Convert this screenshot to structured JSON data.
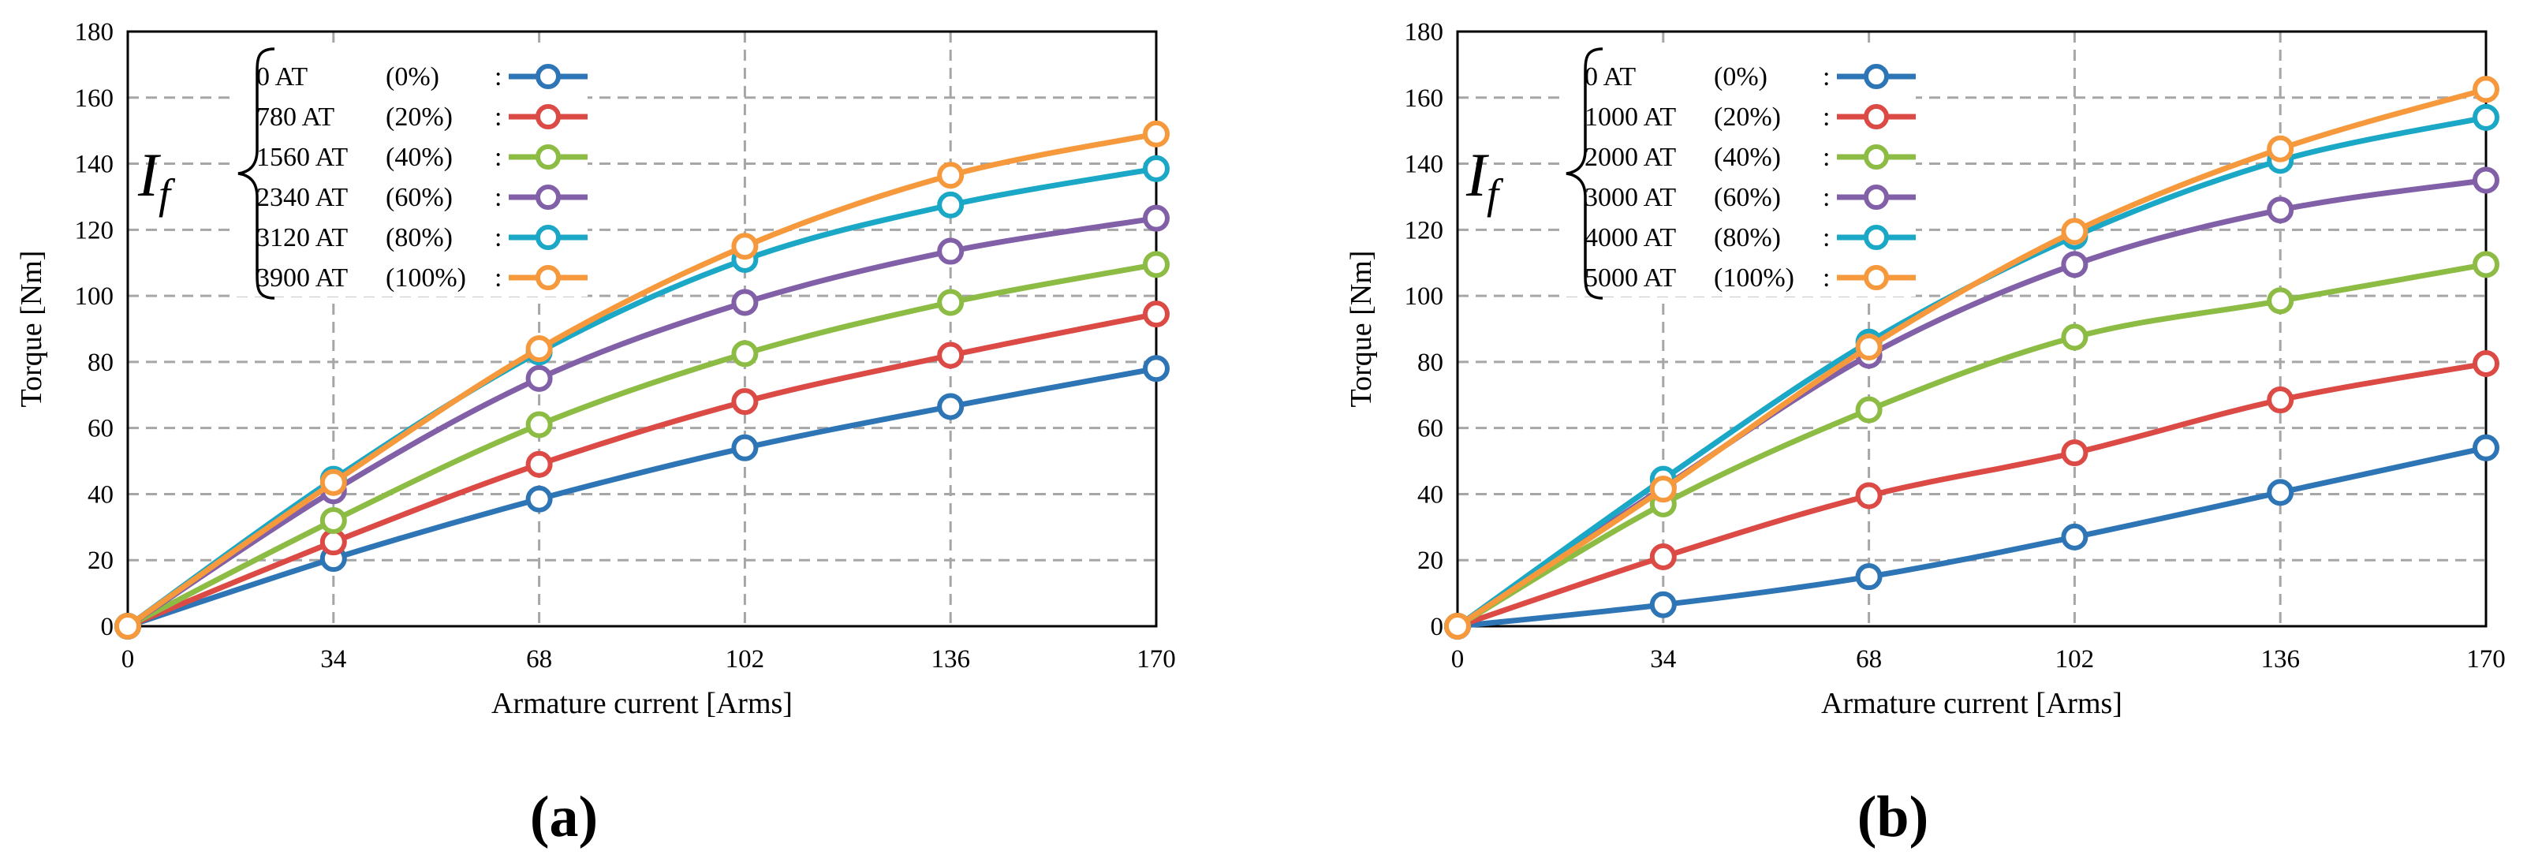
{
  "chart_data": [
    {
      "type": "line",
      "panel_label": "(a)",
      "xlabel": "Armature current [Arms]",
      "ylabel": "Torque [Nm]",
      "xlim": [
        0,
        170
      ],
      "ylim": [
        0,
        180
      ],
      "x_ticks": [
        0,
        34,
        68,
        102,
        136,
        170
      ],
      "y_ticks": [
        0,
        20,
        40,
        60,
        80,
        100,
        120,
        140,
        160,
        180
      ],
      "grid": true,
      "legend_position": "top-left",
      "legend_prefix": "I",
      "legend_prefix_sub": "f",
      "x": [
        0,
        34,
        68,
        102,
        136,
        170
      ],
      "series": [
        {
          "name": "0 AT",
          "pct": "(0%)",
          "color": "#2e75b6",
          "values": [
            0,
            20.5,
            38.5,
            54,
            66.5,
            78
          ]
        },
        {
          "name": "780 AT",
          "pct": "(20%)",
          "color": "#dc4a45",
          "values": [
            0,
            25.5,
            49,
            68,
            82,
            94.5
          ]
        },
        {
          "name": "1560 AT",
          "pct": "(40%)",
          "color": "#8cbc44",
          "values": [
            0,
            32,
            61,
            82.5,
            98,
            109.5
          ]
        },
        {
          "name": "2340 AT",
          "pct": "(60%)",
          "color": "#8160a8",
          "values": [
            0,
            41,
            75,
            98,
            113.5,
            123.5
          ]
        },
        {
          "name": "3120 AT",
          "pct": "(80%)",
          "color": "#1ba8c6",
          "values": [
            0,
            44.5,
            83,
            111,
            127.5,
            138.5
          ]
        },
        {
          "name": "3900 AT",
          "pct": "(100%)",
          "color": "#f6993d",
          "values": [
            0,
            43.5,
            84,
            115,
            136.5,
            149
          ]
        }
      ]
    },
    {
      "type": "line",
      "panel_label": "(b)",
      "xlabel": "Armature current [Arms]",
      "ylabel": "Torque [Nm]",
      "xlim": [
        0,
        170
      ],
      "ylim": [
        0,
        180
      ],
      "x_ticks": [
        0,
        34,
        68,
        102,
        136,
        170
      ],
      "y_ticks": [
        0,
        20,
        40,
        60,
        80,
        100,
        120,
        140,
        160,
        180
      ],
      "grid": true,
      "legend_position": "top-left",
      "legend_prefix": "I",
      "legend_prefix_sub": "f",
      "x": [
        0,
        34,
        68,
        102,
        136,
        170
      ],
      "series": [
        {
          "name": "0 AT",
          "pct": "(0%)",
          "color": "#2e75b6",
          "values": [
            0,
            6.5,
            15,
            27,
            40.5,
            54
          ]
        },
        {
          "name": "1000 AT",
          "pct": "(20%)",
          "color": "#dc4a45",
          "values": [
            0,
            21,
            39.5,
            52.5,
            68.5,
            79.5
          ]
        },
        {
          "name": "2000 AT",
          "pct": "(40%)",
          "color": "#8cbc44",
          "values": [
            0,
            37,
            65.5,
            87.5,
            98.5,
            109.5
          ]
        },
        {
          "name": "3000 AT",
          "pct": "(60%)",
          "color": "#8160a8",
          "values": [
            0,
            42,
            82,
            109.5,
            126,
            135
          ]
        },
        {
          "name": "4000 AT",
          "pct": "(80%)",
          "color": "#1ba8c6",
          "values": [
            0,
            44.5,
            86,
            118,
            141,
            154
          ]
        },
        {
          "name": "5000 AT",
          "pct": "(100%)",
          "color": "#f6993d",
          "values": [
            0,
            41.5,
            84.5,
            119.5,
            144.5,
            162.5
          ]
        }
      ]
    }
  ]
}
